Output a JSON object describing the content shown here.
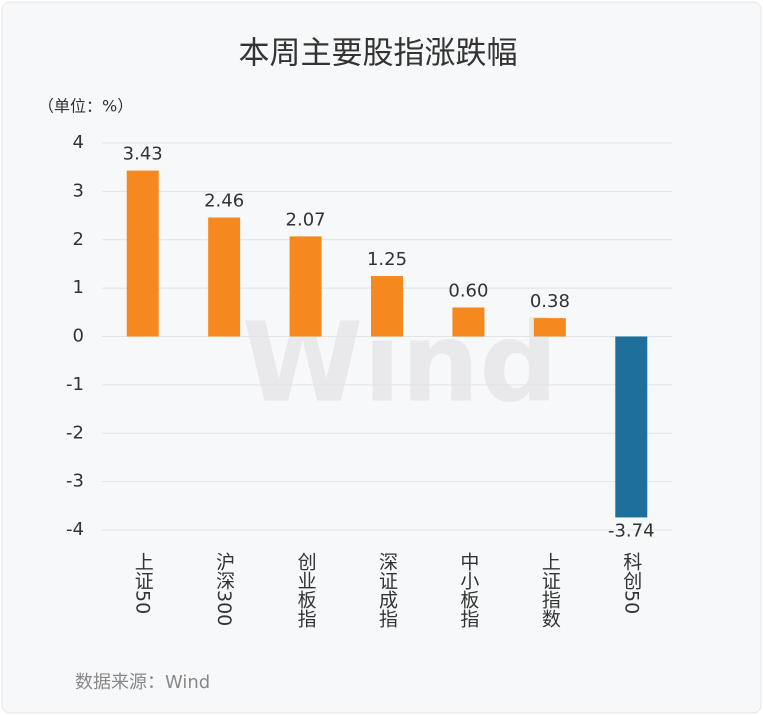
{
  "chart_data": {
    "type": "bar",
    "title": "本周主要股指涨跌幅",
    "unit_label": "（单位：%）",
    "source": "数据来源：Wind",
    "watermark": "Wind",
    "categories": [
      "上证50",
      "沪深300",
      "创业板指",
      "深证成指",
      "中小板指",
      "上证指数",
      "科创50"
    ],
    "values": [
      3.43,
      2.46,
      2.07,
      1.25,
      0.6,
      0.38,
      -3.74
    ],
    "value_labels": [
      "3.43",
      "2.46",
      "2.07",
      "1.25",
      "0.60",
      "0.38",
      "-3.74"
    ],
    "colors": [
      "#f5891f",
      "#f5891f",
      "#f5891f",
      "#f5891f",
      "#f5891f",
      "#f5891f",
      "#1f6f9c"
    ],
    "ylim": [
      -4,
      4
    ],
    "yticks": [
      -4,
      -3,
      -2,
      -1,
      0,
      1,
      2,
      3,
      4
    ],
    "grid": true
  }
}
